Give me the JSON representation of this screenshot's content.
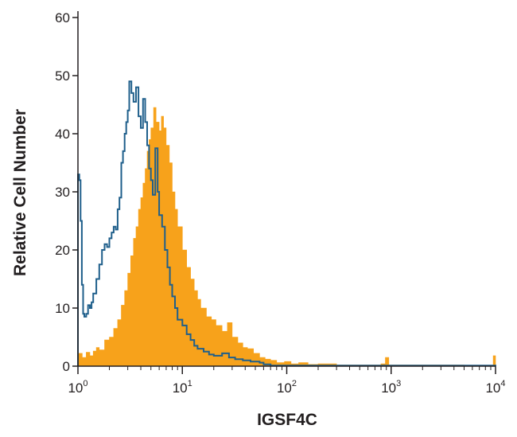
{
  "chart_data": {
    "type": "area",
    "title": "",
    "xlabel": "IGSF4C",
    "ylabel": "Relative Cell Number",
    "x_scale": "log",
    "xlim": [
      1,
      10000
    ],
    "ylim": [
      0,
      60
    ],
    "grid": false,
    "legend": "none",
    "x_ticks": [
      {
        "value": 1,
        "base": "10",
        "exp": "0"
      },
      {
        "value": 10,
        "base": "10",
        "exp": "1"
      },
      {
        "value": 100,
        "base": "10",
        "exp": "2"
      },
      {
        "value": 1000,
        "base": "10",
        "exp": "3"
      },
      {
        "value": 10000,
        "base": "10",
        "exp": "4"
      }
    ],
    "y_ticks": [
      {
        "value": 0,
        "label": "0"
      },
      {
        "value": 10,
        "label": "10"
      },
      {
        "value": 20,
        "label": "20"
      },
      {
        "value": 30,
        "label": "30"
      },
      {
        "value": 40,
        "label": "40"
      },
      {
        "value": 50,
        "label": "50"
      },
      {
        "value": 60,
        "label": "60"
      }
    ],
    "series": [
      {
        "style": "filled",
        "color": "#f7a21b",
        "points": [
          [
            1.0,
            2.2
          ],
          [
            1.1,
            1.5
          ],
          [
            1.2,
            2.4
          ],
          [
            1.3,
            1.8
          ],
          [
            1.4,
            2.6
          ],
          [
            1.5,
            3.2
          ],
          [
            1.6,
            2.8
          ],
          [
            1.8,
            4.5
          ],
          [
            2.0,
            5.0
          ],
          [
            2.2,
            6.5
          ],
          [
            2.4,
            8.0
          ],
          [
            2.6,
            10.5
          ],
          [
            2.8,
            13.0
          ],
          [
            3.0,
            16.0
          ],
          [
            3.2,
            19.0
          ],
          [
            3.4,
            22.0
          ],
          [
            3.6,
            24.0
          ],
          [
            3.8,
            27.0
          ],
          [
            4.0,
            29.0
          ],
          [
            4.2,
            31.5
          ],
          [
            4.4,
            34.0
          ],
          [
            4.6,
            37.0
          ],
          [
            4.8,
            39.0
          ],
          [
            5.0,
            41.0
          ],
          [
            5.3,
            44.5
          ],
          [
            5.6,
            42.0
          ],
          [
            6.0,
            40.5
          ],
          [
            6.3,
            43.0
          ],
          [
            6.6,
            41.0
          ],
          [
            7.0,
            38.0
          ],
          [
            7.5,
            35.0
          ],
          [
            8.0,
            30.0
          ],
          [
            8.5,
            27.0
          ],
          [
            9.0,
            24.0
          ],
          [
            10.0,
            20.0
          ],
          [
            11.0,
            17.0
          ],
          [
            12.0,
            15.0
          ],
          [
            13.0,
            13.0
          ],
          [
            14.0,
            11.5
          ],
          [
            15.0,
            10.0
          ],
          [
            17.0,
            8.5
          ],
          [
            19.0,
            8.0
          ],
          [
            21.0,
            7.0
          ],
          [
            24.0,
            6.0
          ],
          [
            27.0,
            7.5
          ],
          [
            30.0,
            5.0
          ],
          [
            34.0,
            4.0
          ],
          [
            38.0,
            3.2
          ],
          [
            42.0,
            3.0
          ],
          [
            48.0,
            2.2
          ],
          [
            55.0,
            1.5
          ],
          [
            62.0,
            1.2
          ],
          [
            70.0,
            1.0
          ],
          [
            80.0,
            0.6
          ],
          [
            95.0,
            0.8
          ],
          [
            110.0,
            0.4
          ],
          [
            130.0,
            0.6
          ],
          [
            160.0,
            0.3
          ],
          [
            200.0,
            0.4
          ],
          [
            300.0,
            0.2
          ],
          [
            450.0,
            0.2
          ],
          [
            800.0,
            0.4
          ],
          [
            880.0,
            1.5
          ],
          [
            950.0,
            0.2
          ],
          [
            2000.0,
            0.2
          ],
          [
            5000.0,
            0.1
          ],
          [
            9500.0,
            1.8
          ],
          [
            10000.0,
            0.0
          ]
        ]
      },
      {
        "style": "outline",
        "color": "#1f5f8b",
        "points": [
          [
            1.0,
            33.0
          ],
          [
            1.03,
            32.0
          ],
          [
            1.06,
            25.0
          ],
          [
            1.09,
            14.0
          ],
          [
            1.12,
            9.0
          ],
          [
            1.15,
            8.5
          ],
          [
            1.2,
            9.0
          ],
          [
            1.25,
            10.5
          ],
          [
            1.3,
            10.0
          ],
          [
            1.35,
            11.0
          ],
          [
            1.4,
            12.5
          ],
          [
            1.5,
            15.0
          ],
          [
            1.6,
            17.5
          ],
          [
            1.7,
            20.0
          ],
          [
            1.8,
            21.0
          ],
          [
            1.9,
            20.5
          ],
          [
            2.0,
            22.0
          ],
          [
            2.1,
            23.0
          ],
          [
            2.2,
            24.0
          ],
          [
            2.3,
            23.5
          ],
          [
            2.4,
            27.0
          ],
          [
            2.5,
            29.0
          ],
          [
            2.6,
            35.0
          ],
          [
            2.7,
            37.0
          ],
          [
            2.8,
            40.0
          ],
          [
            2.9,
            42.0
          ],
          [
            3.0,
            44.0
          ],
          [
            3.1,
            49.0
          ],
          [
            3.25,
            47.0
          ],
          [
            3.4,
            45.5
          ],
          [
            3.6,
            48.0
          ],
          [
            3.8,
            43.0
          ],
          [
            4.0,
            41.0
          ],
          [
            4.2,
            46.0
          ],
          [
            4.4,
            42.0
          ],
          [
            4.6,
            38.0
          ],
          [
            4.8,
            34.0
          ],
          [
            5.0,
            32.0
          ],
          [
            5.2,
            29.5
          ],
          [
            5.5,
            37.5
          ],
          [
            5.8,
            30.0
          ],
          [
            6.0,
            26.0
          ],
          [
            6.4,
            24.0
          ],
          [
            6.8,
            20.0
          ],
          [
            7.2,
            17.0
          ],
          [
            7.6,
            14.0
          ],
          [
            8.0,
            12.0
          ],
          [
            8.5,
            10.0
          ],
          [
            9.0,
            8.0
          ],
          [
            10.0,
            7.0
          ],
          [
            11.0,
            5.5
          ],
          [
            12.0,
            4.5
          ],
          [
            13.0,
            3.5
          ],
          [
            14.0,
            3.0
          ],
          [
            16.0,
            2.5
          ],
          [
            18.0,
            2.0
          ],
          [
            20.0,
            1.8
          ],
          [
            24.0,
            2.2
          ],
          [
            28.0,
            1.5
          ],
          [
            32.0,
            1.2
          ],
          [
            38.0,
            1.0
          ],
          [
            45.0,
            0.8
          ],
          [
            55.0,
            0.6
          ],
          [
            60.0,
            0.3
          ],
          [
            70.0,
            0.1
          ],
          [
            10000.0,
            0.0
          ]
        ]
      }
    ]
  }
}
